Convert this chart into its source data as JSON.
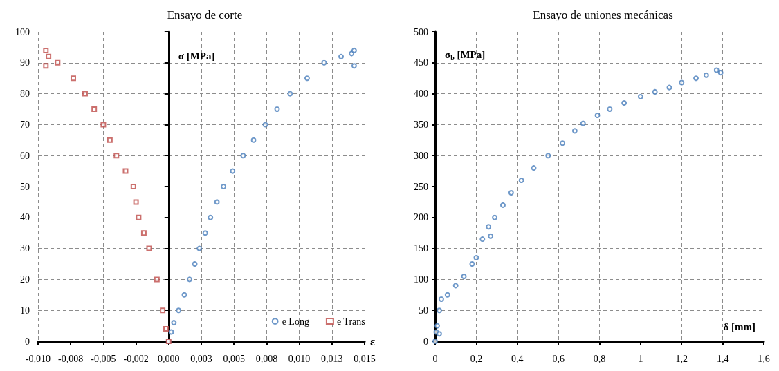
{
  "chart_data": [
    {
      "type": "scatter",
      "title": "Ensayo de corte",
      "xlabel": "ε",
      "ylabel": "σ [MPa]",
      "xlim": [
        -0.01,
        0.015
      ],
      "xticks": [
        {
          "value": -0.01,
          "label": "-0,010"
        },
        {
          "value": -0.0075,
          "label": "-0,008"
        },
        {
          "value": -0.005,
          "label": "-0,005"
        },
        {
          "value": -0.0025,
          "label": "-0,002"
        },
        {
          "value": 0,
          "label": "0,000"
        },
        {
          "value": 0.0025,
          "label": "0,003"
        },
        {
          "value": 0.005,
          "label": "0,005"
        },
        {
          "value": 0.0075,
          "label": "0,008"
        },
        {
          "value": 0.01,
          "label": "0,010"
        },
        {
          "value": 0.0125,
          "label": "0,013"
        },
        {
          "value": 0.015,
          "label": "0,015"
        }
      ],
      "ylim": [
        0,
        100
      ],
      "yticks": [
        0,
        10,
        20,
        30,
        40,
        50,
        60,
        70,
        80,
        90,
        100
      ],
      "grid": true,
      "legend": "bottom right",
      "series": [
        {
          "name": "e Long",
          "color": "#4a7ebb",
          "marker": "circle",
          "x": [
            0,
            0.0002,
            0.0004,
            0.00076,
            0.0012,
            0.0016,
            0.002,
            0.00235,
            0.0028,
            0.0032,
            0.0037,
            0.0042,
            0.0049,
            0.0057,
            0.0065,
            0.0074,
            0.0083,
            0.0093,
            0.0106,
            0.0119,
            0.0132,
            0.014,
            0.0142,
            0.0142
          ],
          "values": [
            0,
            3,
            6,
            10,
            15,
            20,
            25,
            30,
            35,
            40,
            45,
            50,
            55,
            60,
            65,
            70,
            75,
            80,
            85,
            90,
            92,
            93,
            94,
            89
          ]
        },
        {
          "name": "e Trans",
          "color": "#be4b48",
          "marker": "square",
          "x": [
            0,
            -0.0002,
            -0.00046,
            -0.0009,
            -0.0015,
            -0.0019,
            -0.0023,
            -0.0025,
            -0.0027,
            -0.0033,
            -0.004,
            -0.0045,
            -0.005,
            -0.0057,
            -0.0064,
            -0.0073,
            -0.0085,
            -0.0092,
            -0.0094,
            -0.0094
          ],
          "values": [
            0,
            4,
            10,
            20,
            30,
            35,
            40,
            45,
            50,
            55,
            60,
            65,
            70,
            75,
            80,
            85,
            90,
            92,
            94,
            89
          ]
        }
      ]
    },
    {
      "type": "scatter",
      "title": "Ensayo de uniones mecánicas",
      "xlabel": "δ [mm]",
      "ylabel": "σ$_{b}$ [MPa]",
      "xlim": [
        0,
        1.6
      ],
      "xticks": [
        0,
        {
          "value": 0.2,
          "label": "0,2"
        },
        {
          "value": 0.4,
          "label": "0,4"
        },
        {
          "value": 0.6,
          "label": "0,6"
        },
        {
          "value": 0.8,
          "label": "0,8"
        },
        1,
        {
          "value": 1.2,
          "label": "1,2"
        },
        {
          "value": 1.4,
          "label": "1,4"
        },
        {
          "value": 1.6,
          "label": "1,6"
        }
      ],
      "ylim": [
        0,
        500
      ],
      "yticks": [
        0,
        50,
        100,
        150,
        200,
        250,
        300,
        350,
        400,
        450,
        500
      ],
      "grid": true,
      "series": [
        {
          "color": "#4a7ebb",
          "marker": "circle",
          "x": [
            0,
            0.005,
            0.01,
            0.02,
            0.02,
            0.03,
            0.06,
            0.1,
            0.14,
            0.18,
            0.2,
            0.23,
            0.26,
            0.27,
            0.29,
            0.33,
            0.37,
            0.42,
            0.48,
            0.55,
            0.62,
            0.68,
            0.72,
            0.79,
            0.85,
            0.92,
            1.0,
            1.07,
            1.14,
            1.2,
            1.27,
            1.32,
            1.37,
            1.39
          ],
          "values": [
            0,
            15,
            25,
            12,
            50,
            68,
            75,
            90,
            105,
            125,
            135,
            165,
            185,
            170,
            200,
            220,
            240,
            260,
            280,
            300,
            320,
            340,
            352,
            365,
            375,
            385,
            395,
            403,
            410,
            418,
            425,
            430,
            438,
            434
          ]
        }
      ]
    }
  ]
}
